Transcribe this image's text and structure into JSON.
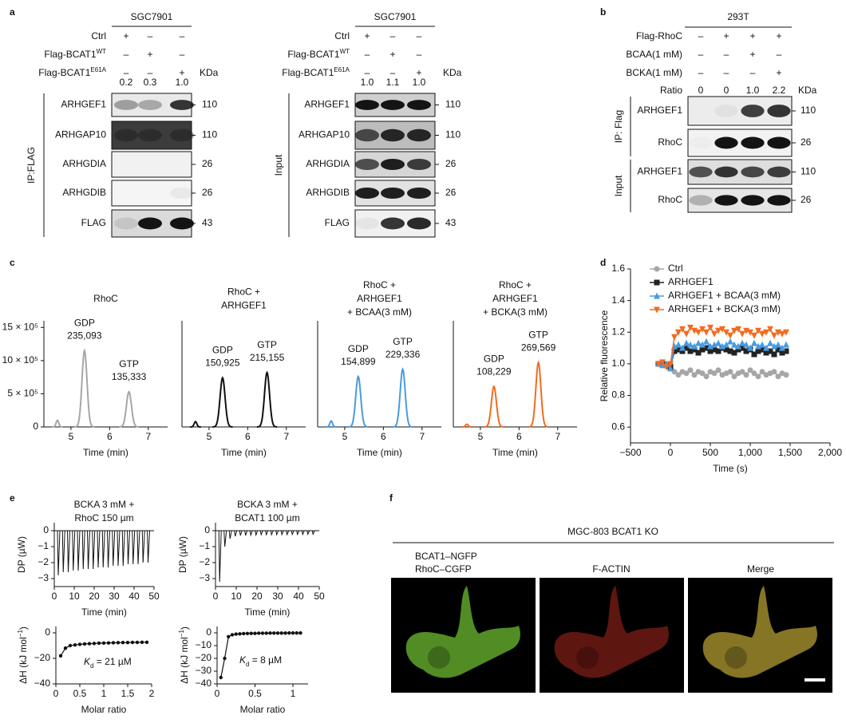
{
  "panel_labels": [
    "a",
    "b",
    "c",
    "d",
    "e",
    "f"
  ],
  "blot_a1": {
    "header": "SGC7901",
    "conditions": [
      {
        "text": "Ctrl",
        "signs": [
          "+",
          "–",
          "–"
        ]
      },
      {
        "text": "Flag-BCAT1",
        "sup": "WT",
        "signs": [
          "–",
          "+",
          "–"
        ]
      },
      {
        "text": "Flag-BCAT1",
        "sup": "E61A",
        "signs": [
          "–",
          "–",
          "+"
        ]
      }
    ],
    "kda": "KDa",
    "ratios": [
      "0.2",
      "0.3",
      "1.0"
    ],
    "groups": [
      {
        "label": "IP:FLAG",
        "rows": [
          {
            "label": "ARHGEF1",
            "mw": "110"
          },
          {
            "label": "ARHGAP10",
            "mw": "110"
          },
          {
            "label": "ARHGDIA",
            "mw": "26"
          },
          {
            "label": "ARHGDIB",
            "mw": "26"
          },
          {
            "label": "FLAG",
            "mw": "43"
          }
        ]
      }
    ]
  },
  "blot_a2": {
    "header": "SGC7901",
    "conditions": [
      {
        "text": "Ctrl",
        "signs": [
          "+",
          "–",
          "–"
        ]
      },
      {
        "text": "Flag-BCAT1",
        "sup": "WT",
        "signs": [
          "–",
          "+",
          "–"
        ]
      },
      {
        "text": "Flag-BCAT1",
        "sup": "E61A",
        "signs": [
          "–",
          "–",
          "+"
        ]
      }
    ],
    "kda": "KDa",
    "ratios": [
      "1.0",
      "1.1",
      "1.0"
    ],
    "groups": [
      {
        "label": "Input",
        "rows": [
          {
            "label": "ARHGEF1",
            "mw": "110"
          },
          {
            "label": "ARHGAP10",
            "mw": "110"
          },
          {
            "label": "ARHGDIA",
            "mw": "26"
          },
          {
            "label": "ARHGDIB",
            "mw": "26"
          },
          {
            "label": "FLAG",
            "mw": "43"
          }
        ]
      }
    ]
  },
  "blot_b": {
    "header": "293T",
    "conditions": [
      {
        "text": "Flag-RhoC",
        "signs": [
          "–",
          "+",
          "+",
          "+"
        ]
      },
      {
        "text": "BCAA(1 mM)",
        "signs": [
          "–",
          "–",
          "+",
          "–"
        ]
      },
      {
        "text": "BCKA(1 mM)",
        "signs": [
          "–",
          "–",
          "–",
          "+"
        ]
      }
    ],
    "kda": "KDa",
    "ratio_label": "Ratio",
    "ratios": [
      "0",
      "0",
      "1.0",
      "2.2"
    ],
    "groups": [
      {
        "label": "IP: Flag",
        "rows": [
          {
            "label": "ARHGEF1",
            "mw": "110"
          },
          {
            "label": "RhoC",
            "mw": "26"
          }
        ]
      },
      {
        "label": "Input",
        "rows": [
          {
            "label": "ARHGEF1",
            "mw": "110"
          },
          {
            "label": "RhoC",
            "mw": "26"
          }
        ]
      }
    ]
  },
  "panel_f": {
    "title": "MGC-803 BCAT1 KO",
    "columns": [
      [
        "BCAT1–NGFP",
        "RhoC–CGFP"
      ],
      [
        "F-ACTIN"
      ],
      [
        "Merge"
      ]
    ]
  },
  "chart_data": [
    {
      "type": "chromatogram",
      "title": [
        "RhoC"
      ],
      "color": "#a6a6a6",
      "xlabel": "Time (min)",
      "xlim": [
        4.3,
        7.5
      ],
      "xticks": [
        5,
        6,
        7
      ],
      "ylim": [
        0,
        1600000
      ],
      "yticks": [
        {
          "value": 0,
          "label": "0"
        },
        {
          "value": 500000,
          "label": "5 × 10⁵"
        },
        {
          "value": 1000000,
          "label": "10 × 10⁵"
        },
        {
          "value": 1500000,
          "label": "15 × 10⁵"
        }
      ],
      "peaks": [
        {
          "x": 4.65,
          "height": 100000
        },
        {
          "x": 5.35,
          "height": 1150000,
          "label": "GDP",
          "area": "235,093"
        },
        {
          "x": 6.5,
          "height": 530000,
          "label": "GTP",
          "area": "135,333"
        }
      ]
    },
    {
      "type": "chromatogram",
      "title": [
        "RhoC +",
        "ARHGEF1"
      ],
      "color": "#111111",
      "xlabel": "Time (min)",
      "xlim": [
        4.3,
        7.5
      ],
      "xticks": [
        5,
        6,
        7
      ],
      "ylim": [
        0,
        1600000
      ],
      "peaks": [
        {
          "x": 4.65,
          "height": 80000
        },
        {
          "x": 5.35,
          "height": 740000,
          "label": "GDP",
          "area": "150,925"
        },
        {
          "x": 6.5,
          "height": 820000,
          "label": "GTP",
          "area": "215,155"
        }
      ]
    },
    {
      "type": "chromatogram",
      "title": [
        "RhoC +",
        "ARHGEF1",
        "+ BCAA(3 mM)"
      ],
      "color": "#4a9be0",
      "xlabel": "Time (min)",
      "xlim": [
        4.3,
        7.5
      ],
      "xticks": [
        5,
        6,
        7
      ],
      "ylim": [
        0,
        1600000
      ],
      "peaks": [
        {
          "x": 4.65,
          "height": 90000
        },
        {
          "x": 5.35,
          "height": 760000,
          "label": "GDP",
          "area": "154,899"
        },
        {
          "x": 6.5,
          "height": 870000,
          "label": "GTP",
          "area": "229,336"
        }
      ]
    },
    {
      "type": "chromatogram",
      "title": [
        "RhoC +",
        "ARHGEF1",
        "+ BCKA(3 mM)"
      ],
      "color": "#f26b21",
      "xlabel": "Time (min)",
      "xlim": [
        4.3,
        7.5
      ],
      "xticks": [
        5,
        6,
        7
      ],
      "ylim": [
        0,
        1600000
      ],
      "peaks": [
        {
          "x": 4.65,
          "height": 40000
        },
        {
          "x": 5.35,
          "height": 610000,
          "label": "GDP",
          "area": "108,229"
        },
        {
          "x": 6.5,
          "height": 970000,
          "label": "GTP",
          "area": "269,569"
        }
      ]
    },
    {
      "type": "line",
      "xlabel": "Time (s)",
      "ylabel": "Relative fluorescence",
      "legend": "upper left",
      "xlim": [
        -500,
        2000
      ],
      "xticks": [
        {
          "value": -500,
          "label": "−500"
        },
        0,
        500,
        {
          "value": 1000,
          "label": "1,000"
        },
        {
          "value": 1500,
          "label": "1,500"
        },
        {
          "value": 2000,
          "label": "2,000"
        }
      ],
      "ylim": [
        0.5,
        1.6
      ],
      "yticks": [
        0.6,
        0.8,
        {
          "value": 1,
          "label": "1.0"
        },
        1.2,
        1.4,
        1.6
      ],
      "x": [
        -150,
        -100,
        -50,
        0,
        50,
        100,
        150,
        200,
        250,
        300,
        350,
        400,
        450,
        500,
        550,
        600,
        650,
        700,
        750,
        800,
        850,
        900,
        950,
        1000,
        1050,
        1100,
        1150,
        1200,
        1250,
        1300,
        1350,
        1400,
        1450
      ],
      "series": [
        {
          "name": "Ctrl",
          "color": "#a6a6a6",
          "marker": "circle",
          "values": [
            1.0,
            1.0,
            0.99,
            1.0,
            0.95,
            0.93,
            0.95,
            0.94,
            0.96,
            0.93,
            0.95,
            0.94,
            0.92,
            0.95,
            0.94,
            0.96,
            0.93,
            0.94,
            0.95,
            0.92,
            0.94,
            0.95,
            0.93,
            0.96,
            0.94,
            0.92,
            0.95,
            0.93,
            0.94,
            0.95,
            0.92,
            0.94,
            0.93
          ]
        },
        {
          "name": "ARHGEF1",
          "color": "#222222",
          "marker": "square",
          "values": [
            1.0,
            1.0,
            0.99,
            0.98,
            1.08,
            1.09,
            1.08,
            1.1,
            1.08,
            1.09,
            1.07,
            1.09,
            1.1,
            1.08,
            1.09,
            1.08,
            1.1,
            1.09,
            1.08,
            1.07,
            1.09,
            1.1,
            1.08,
            1.09,
            1.06,
            1.08,
            1.09,
            1.07,
            1.08,
            1.06,
            1.09,
            1.07,
            1.08
          ]
        },
        {
          "name": "ARHGEF1 + BCAA(3 mM)",
          "color": "#4a9be0",
          "marker": "triangle-up",
          "values": [
            1.0,
            0.99,
            1.0,
            0.97,
            1.11,
            1.12,
            1.1,
            1.13,
            1.12,
            1.11,
            1.13,
            1.12,
            1.14,
            1.11,
            1.12,
            1.13,
            1.11,
            1.12,
            1.14,
            1.12,
            1.11,
            1.13,
            1.12,
            1.1,
            1.13,
            1.11,
            1.12,
            1.1,
            1.13,
            1.11,
            1.12,
            1.1,
            1.12
          ]
        },
        {
          "name": "ARHGEF1 + BCKA(3 mM)",
          "color": "#f26b21",
          "marker": "triangle-down",
          "values": [
            1.0,
            1.01,
            0.98,
            1.0,
            1.17,
            1.2,
            1.22,
            1.19,
            1.23,
            1.21,
            1.2,
            1.22,
            1.2,
            1.23,
            1.19,
            1.21,
            1.22,
            1.2,
            1.18,
            1.21,
            1.22,
            1.19,
            1.21,
            1.2,
            1.18,
            1.21,
            1.19,
            1.2,
            1.22,
            1.18,
            1.2,
            1.19,
            1.2
          ]
        }
      ]
    },
    {
      "type": "itc_raw",
      "title": [
        "BCKA 3 mM +",
        "RhoC 150 µm"
      ],
      "xlabel": "Time (min)",
      "ylabel": "DP (µW)",
      "color": "#111111",
      "xlim": [
        0,
        50
      ],
      "xticks": [
        0,
        10,
        20,
        30,
        40,
        50
      ],
      "ylim": [
        -3.5,
        0.5
      ],
      "yticks": [
        0,
        {
          "value": -1,
          "label": "−1"
        },
        {
          "value": -2,
          "label": "−2"
        },
        {
          "value": -3,
          "label": "−3"
        }
      ],
      "x": [
        2,
        4.5,
        7,
        9.5,
        12,
        14.5,
        17,
        19.5,
        22,
        24.5,
        27,
        29.5,
        32,
        34.5,
        37,
        39.5,
        42,
        44.5,
        47
      ],
      "values": [
        -2.8,
        -2.6,
        -2.6,
        -2.5,
        -2.5,
        -2.4,
        -2.4,
        -2.4,
        -2.3,
        -2.3,
        -2.3,
        -2.2,
        -2.2,
        -2.2,
        -2.1,
        -2.1,
        -2.1,
        -2.0,
        -2.0
      ]
    },
    {
      "type": "itc_raw",
      "title": [
        "BCKA 3 mM +",
        "BCAT1 100 µm"
      ],
      "xlabel": "Time (min)",
      "ylabel": "DP (µW)",
      "color": "#111111",
      "xlim": [
        0,
        50
      ],
      "xticks": [
        0,
        10,
        20,
        30,
        40,
        50
      ],
      "ylim": [
        -3.5,
        0.5
      ],
      "yticks": [
        0,
        {
          "value": -1,
          "label": "−1"
        },
        {
          "value": -2,
          "label": "−2"
        },
        {
          "value": -3,
          "label": "−3"
        }
      ],
      "x": [
        2,
        4.5,
        7,
        9.5,
        12,
        14.5,
        17,
        19.5,
        22,
        24.5,
        27,
        29.5,
        32,
        34.5,
        37,
        39.5,
        42,
        44.5,
        47
      ],
      "values": [
        -3.2,
        -1.0,
        -0.5,
        -0.35,
        -0.3,
        -0.3,
        -0.28,
        -0.27,
        -0.25,
        -0.25,
        -0.25,
        -0.25,
        -0.24,
        -0.24,
        -0.23,
        -0.23,
        -0.23,
        -0.22,
        -0.22
      ]
    },
    {
      "type": "itc_isotherm",
      "xlabel": "Molar ratio",
      "ylabel": {
        "text": "ΔH (kJ mol",
        "sup": "−1",
        "end": ")"
      },
      "annotation": {
        "text": "K",
        "sub": "d",
        "end": " = 21 µM"
      },
      "color": "#111111",
      "xlim": [
        0,
        2
      ],
      "xticks": [
        0,
        0.5,
        1,
        1.5,
        2
      ],
      "ylim": [
        -40,
        5
      ],
      "yticks": [
        0,
        {
          "value": -20,
          "label": "−20"
        },
        {
          "value": -40,
          "label": "−40"
        }
      ],
      "x": [
        0.1,
        0.2,
        0.3,
        0.4,
        0.5,
        0.6,
        0.7,
        0.8,
        0.9,
        1.0,
        1.1,
        1.2,
        1.3,
        1.4,
        1.5,
        1.6,
        1.7,
        1.8,
        1.9
      ],
      "values": [
        -18,
        -12,
        -10,
        -9.5,
        -9,
        -8.7,
        -8.5,
        -8.3,
        -8.1,
        -8,
        -7.9,
        -7.8,
        -7.7,
        -7.6,
        -7.6,
        -7.5,
        -7.5,
        -7.4,
        -7.4
      ]
    },
    {
      "type": "itc_isotherm",
      "xlabel": "Molar ratio",
      "ylabel": {
        "text": "ΔH (kJ mol",
        "sup": "−1",
        "end": ")"
      },
      "annotation": {
        "text": "K",
        "sub": "d",
        "end": " = 8 µM"
      },
      "color": "#111111",
      "xlim": [
        0,
        1.2
      ],
      "xticks": [
        0,
        0.5,
        1
      ],
      "ylim": [
        -40,
        5
      ],
      "yticks": [
        0,
        {
          "value": -10,
          "label": "−10"
        },
        {
          "value": -20,
          "label": "−20"
        },
        {
          "value": -30,
          "label": "−30"
        },
        {
          "value": -40,
          "label": "−40"
        }
      ],
      "x": [
        0.05,
        0.1,
        0.15,
        0.2,
        0.25,
        0.3,
        0.35,
        0.4,
        0.45,
        0.5,
        0.55,
        0.6,
        0.65,
        0.7,
        0.75,
        0.8,
        0.85,
        0.9,
        0.95,
        1.0,
        1.05,
        1.1
      ],
      "values": [
        -35,
        -20,
        -3,
        -1.5,
        -1,
        -0.8,
        -0.6,
        -0.5,
        -0.4,
        -0.4,
        -0.3,
        -0.3,
        -0.3,
        -0.2,
        -0.2,
        -0.2,
        -0.2,
        -0.2,
        -0.1,
        -0.1,
        -0.1,
        -0.1
      ]
    }
  ]
}
